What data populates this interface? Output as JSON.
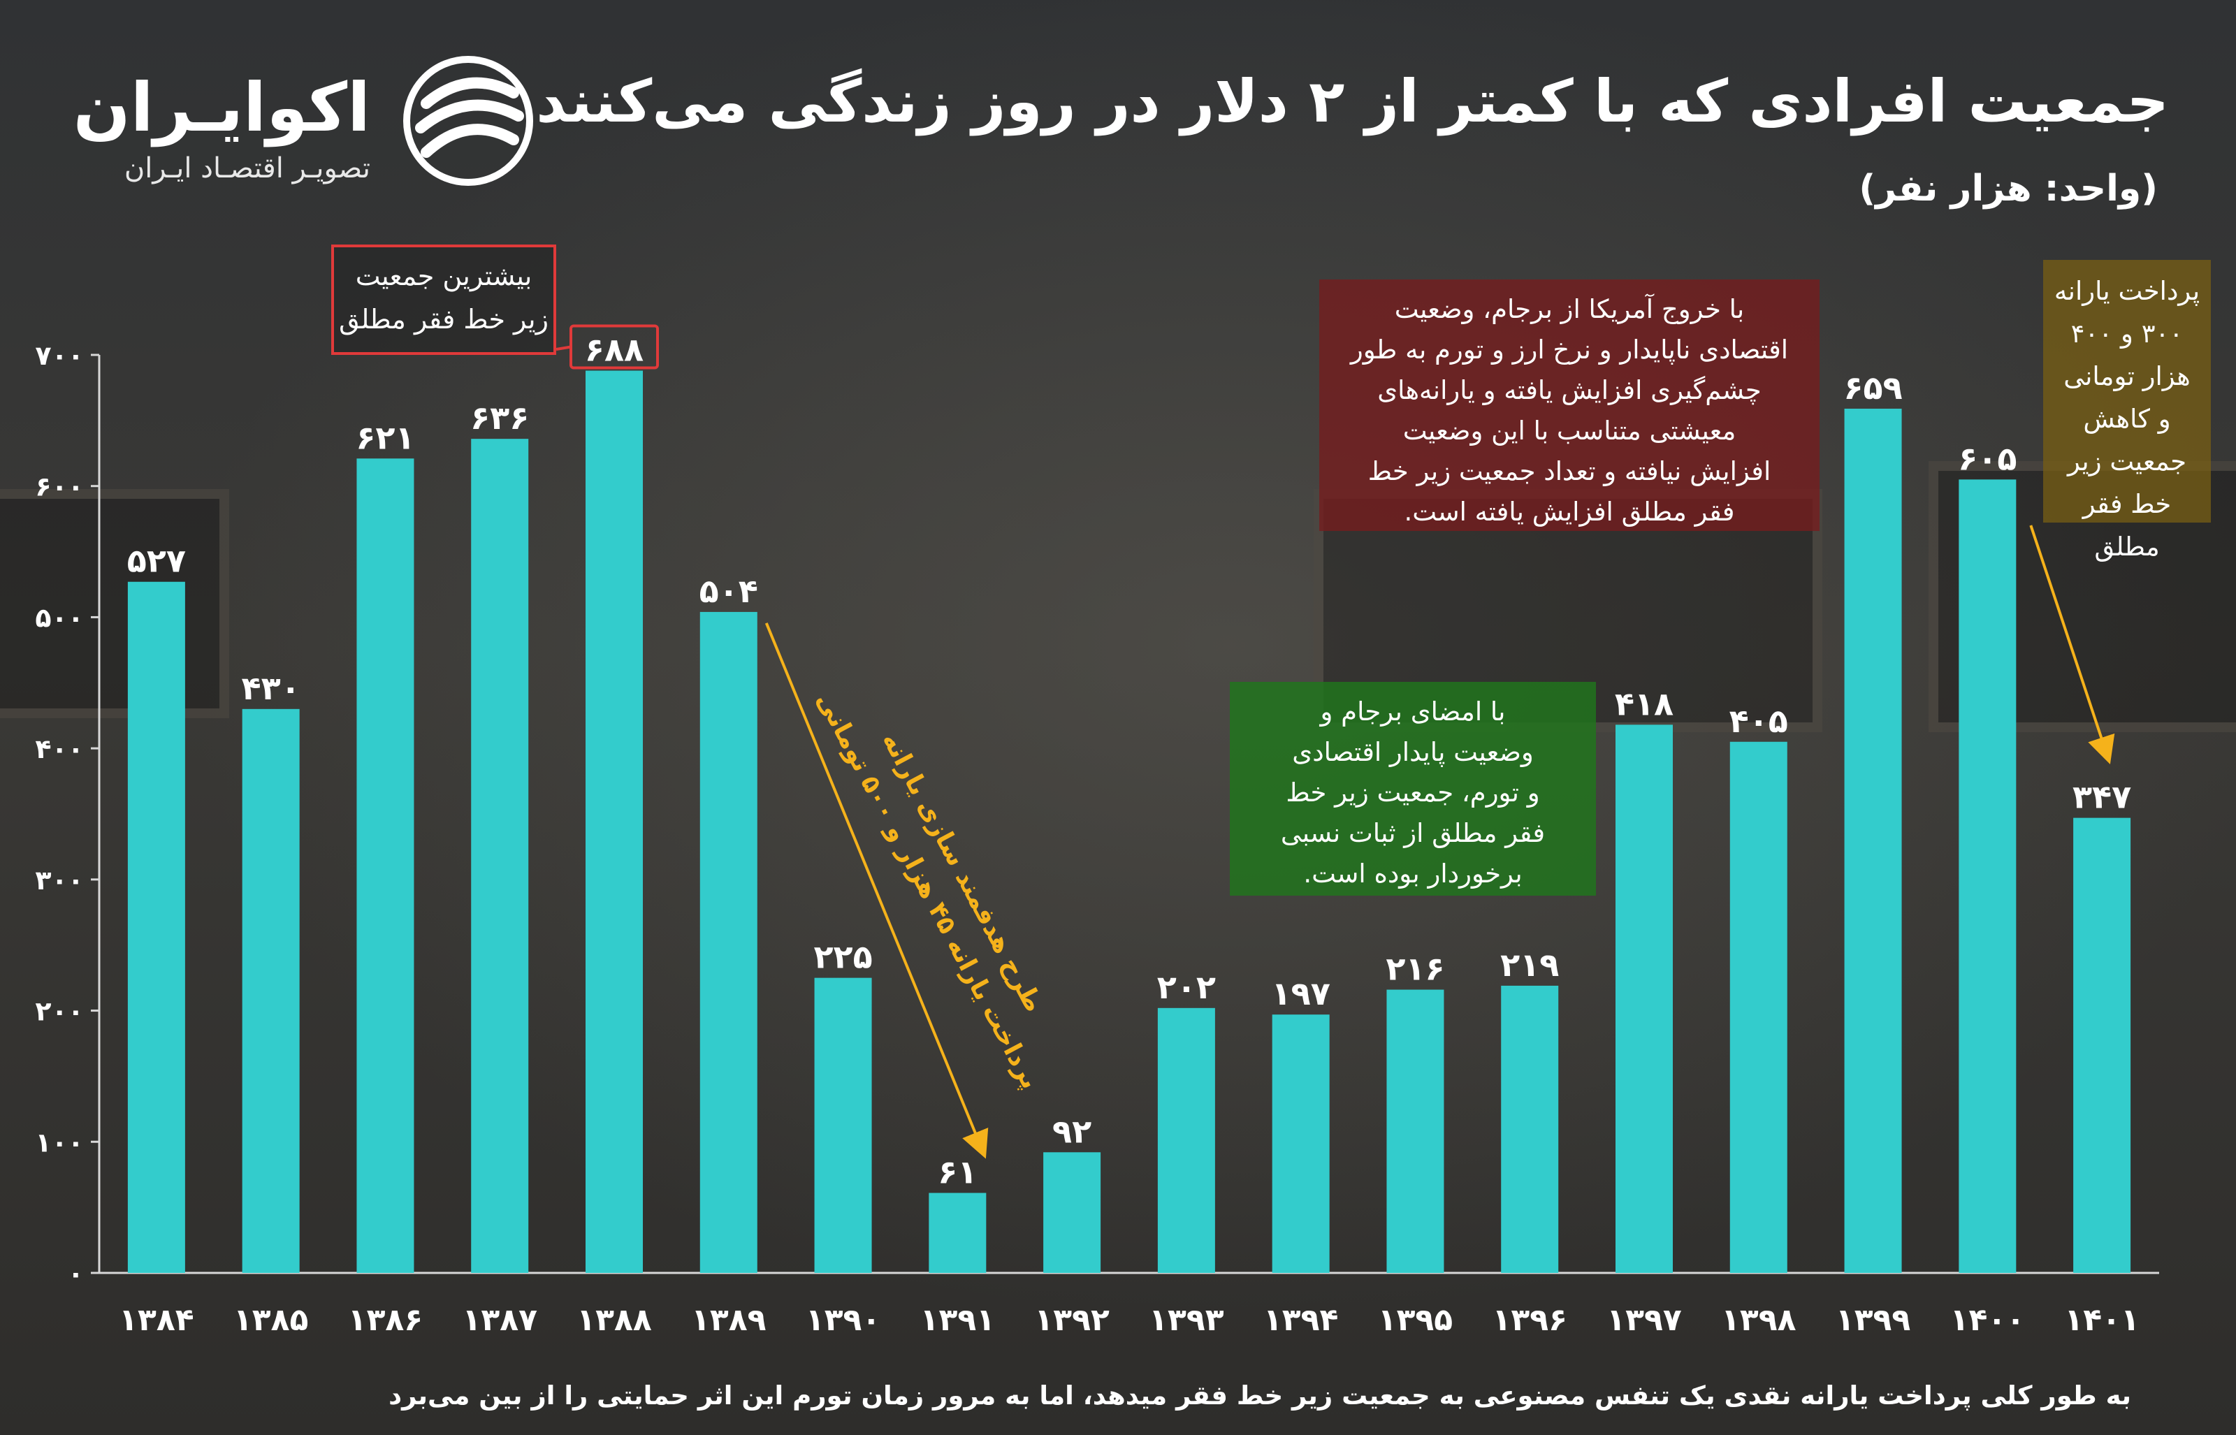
{
  "header": {
    "title": "جمعیت افرادی که با کمتر از ۲ دلار در روز زندگی می‌کنند",
    "unit": "(واحد: هزار نفر)"
  },
  "brand": {
    "name": "اکوایـران",
    "tagline": "تصویـر اقتصـاد ایـران"
  },
  "annotations": {
    "peak_callout": [
      "بیشترین جمعیت",
      "زیر خط فقر مطلق"
    ],
    "subsidy_label": [
      "طرح هدفمند سازی یارانه",
      "پرداخت یارانه ۴۵ هزار و ۵۰۰ تومانی"
    ],
    "green_note": [
      "با امضای برجام و",
      "وضعیت پایدار اقتصادی",
      "و تورم، جمعیت زیر خط",
      "فقر مطلق از ثبات نسبی",
      "برخوردار بوده است."
    ],
    "red_note": [
      "با خروج آمریکا از برجام، وضعیت",
      "اقتصادی ناپایدار و نرخ ارز و تورم به طور",
      "چشم‌گیری افزایش یافته و یارانه‌های",
      "معیشتی متناسب با این وضعیت",
      "افزایش نیافته و تعداد جمعیت زیر خط",
      "فقر مطلق افزایش یافته است."
    ],
    "gold_note": [
      "پرداخت یارانه",
      "۳۰۰ و ۴۰۰",
      "هزار تومانی",
      "و کاهش",
      "جمعیت زیر",
      "خط فقر مطلق"
    ]
  },
  "footer": {
    "text": "به طور کلی پرداخت یارانه نقدی یک تنفس مصنوعی به جمعیت زیر خط فقر میدهد، اما به مرور زمان تورم این اثر حمایتی را از بین می‌برد"
  },
  "colors": {
    "bar": "#33cccc",
    "arrow": "#f5b21b",
    "callout_border": "#e03a3a",
    "red_box": "#761c1e",
    "green_box": "#20761c",
    "gold_box": "#785f14"
  },
  "chart_data": {
    "type": "bar",
    "categories": [
      "۱۳۸۴",
      "۱۳۸۵",
      "۱۳۸۶",
      "۱۳۸۷",
      "۱۳۸۸",
      "۱۳۸۹",
      "۱۳۹۰",
      "۱۳۹۱",
      "۱۳۹۲",
      "۱۳۹۳",
      "۱۳۹۴",
      "۱۳۹۵",
      "۱۳۹۶",
      "۱۳۹۷",
      "۱۳۹۸",
      "۱۳۹۹",
      "۱۴۰۰",
      "۱۴۰۱"
    ],
    "values": [
      527,
      430,
      621,
      636,
      688,
      504,
      225,
      61,
      92,
      202,
      197,
      216,
      219,
      418,
      405,
      659,
      605,
      347
    ],
    "value_labels": [
      "۵۲۷",
      "۴۳۰",
      "۶۲۱",
      "۶۳۶",
      "۶۸۸",
      "۵۰۴",
      "۲۲۵",
      "۶۱",
      "۹۲",
      "۲۰۲",
      "۱۹۷",
      "۲۱۶",
      "۲۱۹",
      "۴۱۸",
      "۴۰۵",
      "۶۵۹",
      "۶۰۵",
      "۳۴۷"
    ],
    "yticks": [
      0,
      100,
      200,
      300,
      400,
      500,
      600,
      700
    ],
    "ytick_labels": [
      "۰",
      "۱۰۰",
      "۲۰۰",
      "۳۰۰",
      "۴۰۰",
      "۵۰۰",
      "۶۰۰",
      "۷۰۰"
    ],
    "ylim": [
      0,
      700
    ],
    "grid": false
  }
}
